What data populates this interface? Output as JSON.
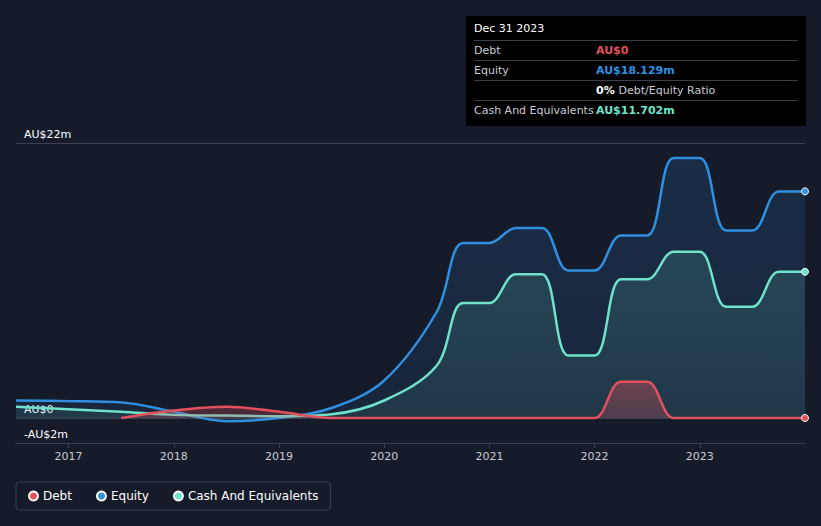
{
  "chart_data": {
    "type": "line",
    "x": [
      2016.5,
      2017,
      2017.5,
      2018,
      2018.5,
      2019,
      2019.5,
      2020,
      2020.5,
      2020.75,
      2021,
      2021.25,
      2021.5,
      2021.75,
      2022,
      2022.25,
      2022.5,
      2022.75,
      2023,
      2023.25,
      2023.5,
      2023.75,
      2024
    ],
    "series": [
      {
        "name": "Debt",
        "color": "#e4505c",
        "values": [
          null,
          null,
          0,
          0.6,
          0.9,
          0.5,
          0,
          0,
          0,
          0,
          0,
          0,
          0,
          0,
          0,
          2.9,
          2.9,
          0,
          0,
          0,
          0,
          0,
          0
        ]
      },
      {
        "name": "Equity",
        "color": "#2f8fe0",
        "values": [
          1.4,
          1.35,
          1.25,
          0.5,
          -0.25,
          0,
          0.8,
          3,
          8.5,
          14,
          14,
          15.2,
          15.2,
          11.8,
          11.8,
          14.6,
          14.6,
          20.8,
          20.8,
          15,
          15,
          18.129,
          18.129
        ]
      },
      {
        "name": "Cash And Equivalents",
        "color": "#6fe2cb",
        "values": [
          0.9,
          0.7,
          0.5,
          0.25,
          0.2,
          0.15,
          0.3,
          1.4,
          4.2,
          9.2,
          9.2,
          11.5,
          11.5,
          5,
          5,
          11.1,
          11.1,
          13.3,
          13.3,
          8.9,
          8.9,
          11.702,
          11.702
        ]
      }
    ],
    "xlim": [
      2016.5,
      2024
    ],
    "xticks": [
      2017,
      2018,
      2019,
      2020,
      2021,
      2022,
      2023
    ],
    "ylim": [
      -2,
      22
    ],
    "yticks": [
      {
        "value": -2,
        "label": "-AU$2m"
      },
      {
        "value": 0,
        "label": "AU$0"
      },
      {
        "value": 22,
        "label": "AU$22m"
      }
    ],
    "grid": true,
    "legend": "bottom-left",
    "annotation": {
      "title": "Dec 31 2023",
      "rows": [
        {
          "label": "Debt",
          "value": "AU$0",
          "series": "Debt"
        },
        {
          "label": "Equity",
          "value": "AU$18.129m",
          "series": "Equity"
        },
        {
          "value": "0%",
          "label": "Debt/Equity Ratio"
        },
        {
          "label": "Cash And Equivalents",
          "value": "AU$11.702m",
          "series": "Cash And Equivalents"
        }
      ]
    }
  }
}
